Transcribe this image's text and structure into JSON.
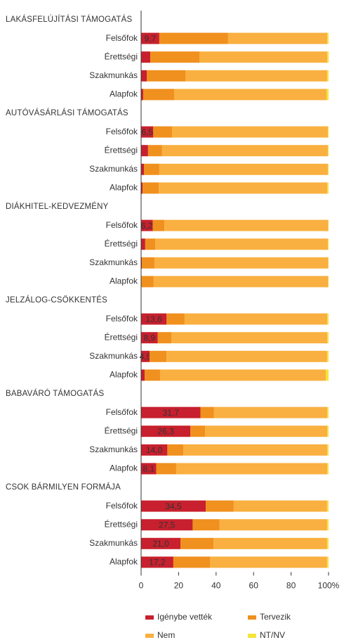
{
  "chart_data": {
    "type": "stacked_bar_horizontal",
    "groups": [
      {
        "title": "LAKÁSFELÚJÍTÁSI TÁMOGATÁS",
        "categories": [
          "Felsőfok",
          "Érettségi",
          "Szakmunkás",
          "Alapfok"
        ]
      },
      {
        "title": "AUTÓVÁSÁRLÁSI TÁMOGATÁS",
        "categories": [
          "Felsőfok",
          "Érettségi",
          "Szakmunkás",
          "Alapfok"
        ]
      },
      {
        "title": "DIÁKHITEL-KEDVEZMÉNY",
        "categories": [
          "Felsőfok",
          "Érettségi",
          "Szakmunkás",
          "Alapfok"
        ]
      },
      {
        "title": "JELZÁLOG-CSÖKKENTÉS",
        "categories": [
          "Felsőfok",
          "Érettségi",
          "Szakmunkás",
          "Alapfok"
        ]
      },
      {
        "title": "BABAVÁRÓ TÁMOGATÁS",
        "categories": [
          "Felsőfok",
          "Érettségi",
          "Szakmunkás",
          "Alapfok"
        ]
      },
      {
        "title": "CSOK BÁRMILYEN FORMÁJA",
        "categories": [
          "Felsőfok",
          "Érettségi",
          "Szakmunkás",
          "Alapfok"
        ]
      }
    ],
    "series": [
      {
        "name": "Igénybe vették",
        "color": "#c8202e",
        "values": [
          9.7,
          4.9,
          3.0,
          1.1,
          6.5,
          3.7,
          1.5,
          0.8,
          6.2,
          2.2,
          0.4,
          0.2,
          13.6,
          8.9,
          4.5,
          1.9,
          31.7,
          26.3,
          14.0,
          8.1,
          34.5,
          27.5,
          21.0,
          17.2
        ],
        "value_labels": [
          "9,7",
          null,
          null,
          null,
          "6,5",
          null,
          null,
          null,
          "6,2",
          null,
          null,
          null,
          "13,6",
          "8,9",
          "4,5",
          null,
          "31,7",
          "26,3",
          "14,0",
          "8,1",
          "34,5",
          "27,5",
          "21,0",
          "17,2"
        ]
      },
      {
        "name": "Tervezik",
        "color": "#f0901e",
        "values": [
          36.7,
          26.2,
          20.6,
          16.5,
          10.0,
          7.5,
          8.2,
          8.6,
          6.2,
          5.3,
          6.7,
          6.5,
          9.6,
          7.2,
          9.0,
          8.2,
          7.2,
          7.8,
          8.5,
          10.6,
          14.9,
          14.4,
          17.6,
          19.5
        ]
      },
      {
        "name": "Nem",
        "color": "#f9b040",
        "values": [
          52.9,
          68.2,
          75.6,
          81.3,
          83.1,
          88.4,
          89.9,
          89.9,
          87.4,
          92.1,
          92.7,
          93.1,
          76.1,
          83.2,
          85.7,
          88.4,
          60.4,
          65.2,
          76.8,
          80.6,
          49.8,
          57.3,
          60.6,
          62.5
        ]
      },
      {
        "name": "NT/NV",
        "color": "#f5e43a",
        "values": [
          0.7,
          0.8,
          0.8,
          1.1,
          0.4,
          0.4,
          0.4,
          0.7,
          0.2,
          0.4,
          0.2,
          0.2,
          0.7,
          0.7,
          0.8,
          1.5,
          0.7,
          0.7,
          0.7,
          0.7,
          0.8,
          0.8,
          0.8,
          0.8
        ]
      }
    ],
    "xlim": [
      0,
      100
    ],
    "xticks": [
      0,
      20,
      40,
      60,
      80,
      {
        "value": 100,
        "label": "100%"
      }
    ]
  }
}
